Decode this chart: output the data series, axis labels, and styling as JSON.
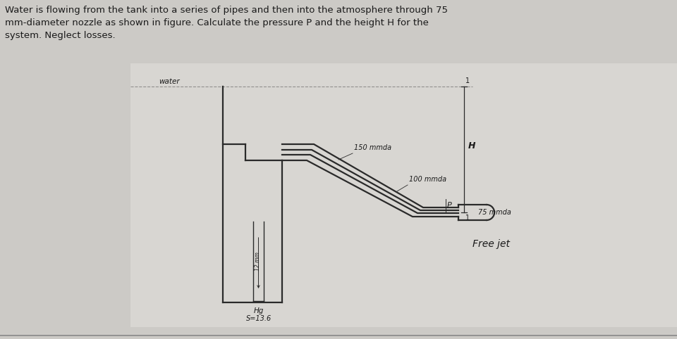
{
  "bg_color": "#cccac6",
  "diagram_bg": "#c8c6c2",
  "pipe_color": "#2a2a2a",
  "text_color": "#1a1a1a",
  "title_text": "Water is flowing from the tank into a series of pipes and then into the atmosphere through 75\nmm-diameter nozzle as shown in figure. Calculate the pressure P and the height H for the\nsystem. Neglect losses.",
  "labels": {
    "water": "water",
    "pipe1": "150 mmda",
    "pipe2": "100 mmda",
    "pipe3": "75 mmda",
    "freejet": "Free jet",
    "H": "H",
    "P": "P",
    "hg": "Hg",
    "S136": "S=13.6"
  },
  "fig_width": 9.6,
  "fig_height": 4.82,
  "dpi": 100
}
